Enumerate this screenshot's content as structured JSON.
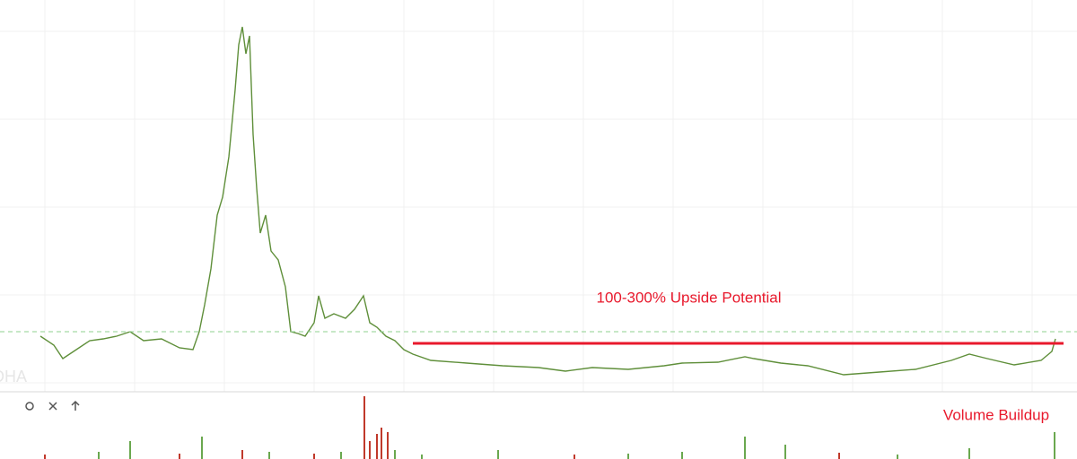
{
  "chart_data": [
    {
      "type": "line",
      "color": "#5f8f3a",
      "grid": true,
      "watermark": "DHA",
      "xlim": [
        0,
        1200
      ],
      "ylim": [
        0,
        430
      ],
      "x": [
        45,
        60,
        70,
        85,
        100,
        115,
        130,
        145,
        160,
        180,
        200,
        215,
        222,
        228,
        235,
        242,
        248,
        255,
        262,
        266,
        270,
        274,
        278,
        282,
        286,
        290,
        296,
        302,
        310,
        318,
        324,
        332,
        340,
        350,
        355,
        362,
        372,
        385,
        395,
        405,
        412,
        420,
        430,
        440,
        450,
        460,
        480,
        520,
        560,
        600,
        630,
        660,
        700,
        740,
        760,
        800,
        830,
        840,
        870,
        900,
        940,
        980,
        1020,
        1060,
        1080,
        1100,
        1130,
        1160,
        1172,
        1176
      ],
      "values": [
        65,
        55,
        40,
        50,
        60,
        62,
        65,
        70,
        60,
        62,
        52,
        50,
        70,
        100,
        140,
        200,
        220,
        265,
        340,
        390,
        410,
        380,
        400,
        290,
        230,
        180,
        200,
        160,
        150,
        120,
        70,
        68,
        65,
        80,
        110,
        85,
        90,
        85,
        95,
        110,
        80,
        75,
        65,
        60,
        50,
        45,
        38,
        35,
        32,
        30,
        26,
        30,
        28,
        32,
        35,
        36,
        42,
        40,
        35,
        32,
        22,
        25,
        28,
        38,
        45,
        40,
        33,
        38,
        48,
        62
      ],
      "annotations": [
        {
          "type": "hline",
          "value": 70,
          "style": "dashed",
          "color": "#8fd18f"
        },
        {
          "type": "hline",
          "value": 57,
          "x": [
            460,
            1185
          ],
          "color": "#e8192c",
          "text": "100-300% Upside Potential"
        }
      ]
    },
    {
      "type": "bar",
      "xlim": [
        0,
        1200
      ],
      "ylim": [
        0,
        72
      ],
      "x": [
        50,
        110,
        145,
        200,
        225,
        270,
        300,
        350,
        380,
        406,
        412,
        420,
        425,
        432,
        440,
        470,
        555,
        640,
        700,
        760,
        830,
        875,
        935,
        1000,
        1080,
        1175
      ],
      "values": [
        5,
        8,
        20,
        6,
        25,
        10,
        8,
        6,
        8,
        70,
        20,
        28,
        35,
        30,
        10,
        5,
        10,
        5,
        6,
        8,
        25,
        16,
        7,
        5,
        12,
        30
      ],
      "colors": [
        "#c0392b",
        "#6aa84f",
        "#6aa84f",
        "#c0392b",
        "#6aa84f",
        "#c0392b",
        "#6aa84f",
        "#c0392b",
        "#6aa84f",
        "#c0392b",
        "#c0392b",
        "#c0392b",
        "#c0392b",
        "#c0392b",
        "#6aa84f",
        "#6aa84f",
        "#6aa84f",
        "#c0392b",
        "#6aa84f",
        "#6aa84f",
        "#6aa84f",
        "#6aa84f",
        "#c0392b",
        "#6aa84f",
        "#6aa84f",
        "#6aa84f"
      ],
      "annotations": [
        {
          "text": "Volume Buildup",
          "color": "#e8192c"
        }
      ]
    }
  ]
}
